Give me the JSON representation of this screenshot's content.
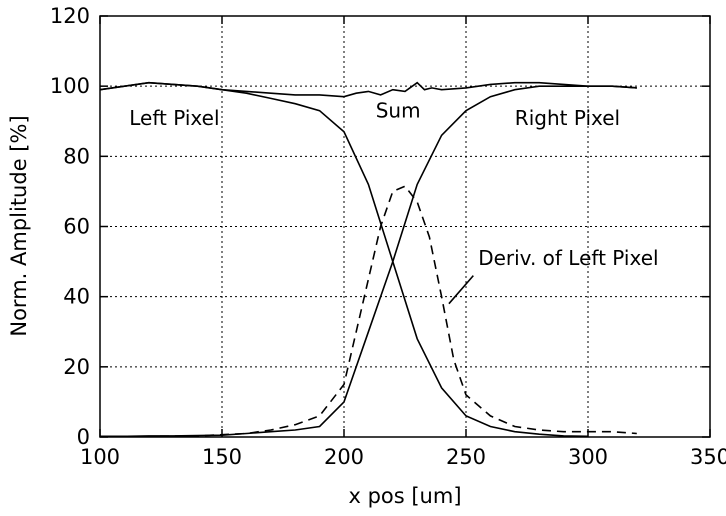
{
  "chart_data": {
    "type": "line",
    "title": "",
    "xlabel": "x pos [um]",
    "ylabel": "Norm. Amplitude [%]",
    "xlim": [
      100,
      350
    ],
    "ylim": [
      0,
      120
    ],
    "xticks": [
      100,
      150,
      200,
      250,
      300,
      350
    ],
    "yticks": [
      0,
      20,
      40,
      60,
      80,
      100,
      120
    ],
    "grid": true,
    "series": [
      {
        "style": "solid",
        "points": [
          [
            100,
            99
          ],
          [
            110,
            100
          ],
          [
            120,
            101
          ],
          [
            130,
            100.5
          ],
          [
            140,
            100
          ],
          [
            150,
            99
          ],
          [
            160,
            98
          ],
          [
            170,
            96.5
          ],
          [
            180,
            95
          ],
          [
            190,
            93
          ],
          [
            200,
            87
          ],
          [
            210,
            72
          ],
          [
            220,
            50
          ],
          [
            230,
            28
          ],
          [
            240,
            14
          ],
          [
            250,
            6
          ],
          [
            260,
            3
          ],
          [
            270,
            1.5
          ],
          [
            280,
            0.8
          ],
          [
            290,
            0.3
          ],
          [
            300,
            0.2
          ]
        ]
      },
      {
        "style": "solid",
        "points": [
          [
            100,
            0.2
          ],
          [
            110,
            0.2
          ],
          [
            120,
            0.3
          ],
          [
            130,
            0.3
          ],
          [
            140,
            0.4
          ],
          [
            150,
            0.5
          ],
          [
            160,
            1
          ],
          [
            170,
            1.5
          ],
          [
            180,
            2
          ],
          [
            190,
            3
          ],
          [
            200,
            10
          ],
          [
            210,
            30
          ],
          [
            220,
            50
          ],
          [
            230,
            72
          ],
          [
            240,
            86
          ],
          [
            250,
            93
          ],
          [
            260,
            97
          ],
          [
            270,
            99
          ],
          [
            280,
            100
          ],
          [
            290,
            100
          ],
          [
            300,
            100
          ],
          [
            310,
            100
          ],
          [
            320,
            99.5
          ]
        ]
      },
      {
        "style": "solid",
        "points": [
          [
            100,
            99
          ],
          [
            110,
            100
          ],
          [
            120,
            101
          ],
          [
            130,
            100.5
          ],
          [
            140,
            100
          ],
          [
            150,
            99
          ],
          [
            160,
            98.5
          ],
          [
            170,
            98
          ],
          [
            180,
            97.5
          ],
          [
            190,
            97.5
          ],
          [
            200,
            97
          ],
          [
            205,
            98
          ],
          [
            210,
            98.5
          ],
          [
            215,
            97.5
          ],
          [
            220,
            99
          ],
          [
            225,
            98.5
          ],
          [
            230,
            101
          ],
          [
            233,
            99
          ],
          [
            236,
            99.5
          ],
          [
            240,
            99
          ],
          [
            250,
            99.5
          ],
          [
            260,
            100.5
          ],
          [
            270,
            101
          ],
          [
            280,
            101
          ],
          [
            290,
            100.5
          ],
          [
            300,
            100
          ],
          [
            310,
            100
          ],
          [
            320,
            99.5
          ]
        ]
      },
      {
        "style": "dashed",
        "points": [
          [
            100,
            0.2
          ],
          [
            120,
            0.2
          ],
          [
            140,
            0.3
          ],
          [
            160,
            1
          ],
          [
            170,
            2
          ],
          [
            180,
            3.5
          ],
          [
            190,
            6
          ],
          [
            200,
            15
          ],
          [
            210,
            45
          ],
          [
            215,
            60
          ],
          [
            220,
            70
          ],
          [
            225,
            71.5
          ],
          [
            230,
            67
          ],
          [
            235,
            57
          ],
          [
            240,
            40
          ],
          [
            245,
            22
          ],
          [
            250,
            12
          ],
          [
            260,
            6
          ],
          [
            270,
            3
          ],
          [
            280,
            2
          ],
          [
            290,
            1.5
          ],
          [
            300,
            1.5
          ],
          [
            310,
            1.5
          ],
          [
            320,
            1
          ]
        ]
      }
    ],
    "annotations": [
      {
        "text": "Left Pixel",
        "x": 112,
        "y": 89
      },
      {
        "text": "Sum",
        "x": 213,
        "y": 91
      },
      {
        "text": "Right Pixel",
        "x": 270,
        "y": 89
      },
      {
        "text": "Deriv. of Left Pixel",
        "x": 255,
        "y": 49
      }
    ],
    "pointer": {
      "from": [
        253,
        46
      ],
      "to": [
        243,
        38
      ]
    }
  }
}
